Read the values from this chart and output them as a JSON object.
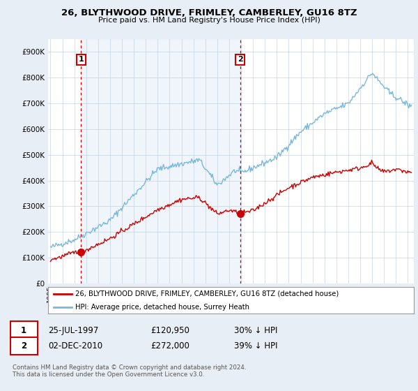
{
  "title": "26, BLYTHWOOD DRIVE, FRIMLEY, CAMBERLEY, GU16 8TZ",
  "subtitle": "Price paid vs. HM Land Registry's House Price Index (HPI)",
  "ylabel_ticks": [
    "£0",
    "£100K",
    "£200K",
    "£300K",
    "£400K",
    "£500K",
    "£600K",
    "£700K",
    "£800K",
    "£900K"
  ],
  "ytick_values": [
    0,
    100000,
    200000,
    300000,
    400000,
    500000,
    600000,
    700000,
    800000,
    900000
  ],
  "ylim": [
    0,
    950000
  ],
  "xlim_start": 1994.8,
  "xlim_end": 2025.5,
  "xtick_years": [
    1995,
    1996,
    1997,
    1998,
    1999,
    2000,
    2001,
    2002,
    2003,
    2004,
    2005,
    2006,
    2007,
    2008,
    2009,
    2010,
    2011,
    2012,
    2013,
    2014,
    2015,
    2016,
    2017,
    2018,
    2019,
    2020,
    2021,
    2022,
    2023,
    2024,
    2025
  ],
  "sale1_x": 1997.56,
  "sale1_y": 120950,
  "sale1_label": "1",
  "sale1_date": "25-JUL-1997",
  "sale1_price": "£120,950",
  "sale1_hpi": "30% ↓ HPI",
  "sale2_x": 2010.92,
  "sale2_y": 272000,
  "sale2_label": "2",
  "sale2_date": "02-DEC-2010",
  "sale2_price": "£272,000",
  "sale2_hpi": "39% ↓ HPI",
  "hpi_color": "#7ab8d9",
  "hpi_fill_color": "#daeaf5",
  "sale_color": "#cc0000",
  "dot_color": "#cc0000",
  "dashed_line_color": "#cc0000",
  "background_color": "#e8eef5",
  "plot_bg_color": "#ffffff",
  "grid_color": "#c8d4e0",
  "legend_label1": "26, BLYTHWOOD DRIVE, FRIMLEY, CAMBERLEY, GU16 8TZ (detached house)",
  "legend_label2": "HPI: Average price, detached house, Surrey Heath",
  "footer": "Contains HM Land Registry data © Crown copyright and database right 2024.\nThis data is licensed under the Open Government Licence v3.0."
}
